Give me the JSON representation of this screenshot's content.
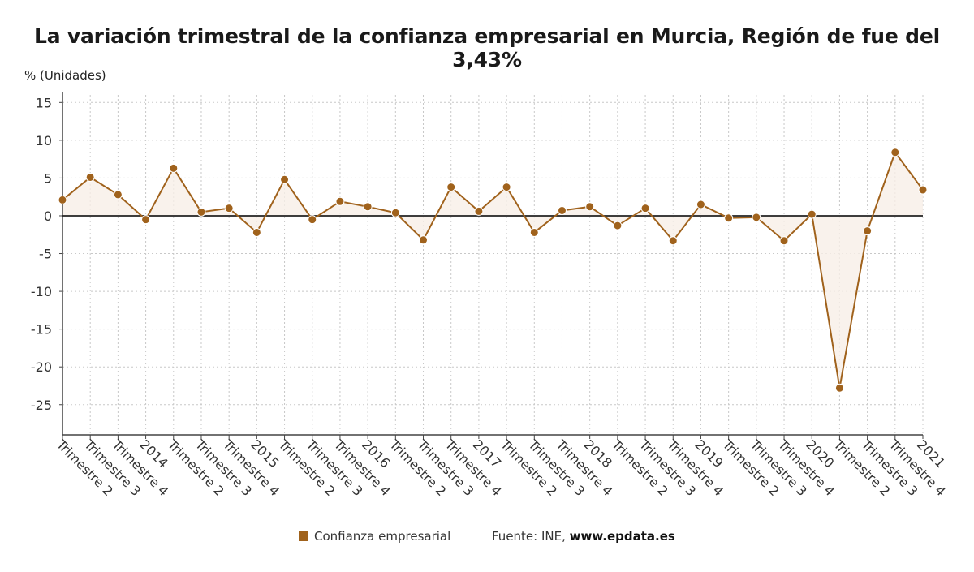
{
  "title": "La variación trimestral de la confianza empresarial en Murcia, Región de fue del 3,43%",
  "y_unit_label": "% (Unidades)",
  "legend": {
    "label": "Confianza empresarial",
    "color": "#a0621c"
  },
  "source": {
    "prefix": "Fuente: INE, ",
    "site": "www.epdata.es"
  },
  "chart_data": {
    "type": "line",
    "categories": [
      "Trimestre 2",
      "Trimestre 3",
      "Trimestre 4",
      "2014",
      "Trimestre 2",
      "Trimestre 3",
      "Trimestre 4",
      "2015",
      "Trimestre 2",
      "Trimestre 3",
      "Trimestre 4",
      "2016",
      "Trimestre 2",
      "Trimestre 3",
      "Trimestre 4",
      "2017",
      "Trimestre 2",
      "Trimestre 3",
      "Trimestre 4",
      "2018",
      "Trimestre 2",
      "Trimestre 3",
      "Trimestre 4",
      "2019",
      "Trimestre 2",
      "Trimestre 3",
      "Trimestre 4",
      "2020",
      "Trimestre 2",
      "Trimestre 3",
      "Trimestre 4",
      "2021"
    ],
    "series": [
      {
        "name": "Confianza empresarial",
        "values": [
          2.1,
          5.1,
          2.8,
          -0.5,
          6.3,
          0.5,
          1.0,
          -2.2,
          4.8,
          -0.5,
          1.9,
          1.2,
          0.4,
          -3.2,
          3.8,
          0.6,
          3.8,
          -2.2,
          0.7,
          1.2,
          -1.3,
          1.0,
          -3.3,
          1.5,
          -0.3,
          -0.2,
          -3.3,
          0.2,
          -22.8,
          -2.0,
          8.4,
          3.43
        ]
      }
    ],
    "ylim": [
      -29,
      16
    ],
    "yticks": [
      15,
      10,
      5,
      0,
      -5,
      -10,
      -15,
      -20,
      -25
    ],
    "grid": true,
    "legend_position": "bottom"
  }
}
